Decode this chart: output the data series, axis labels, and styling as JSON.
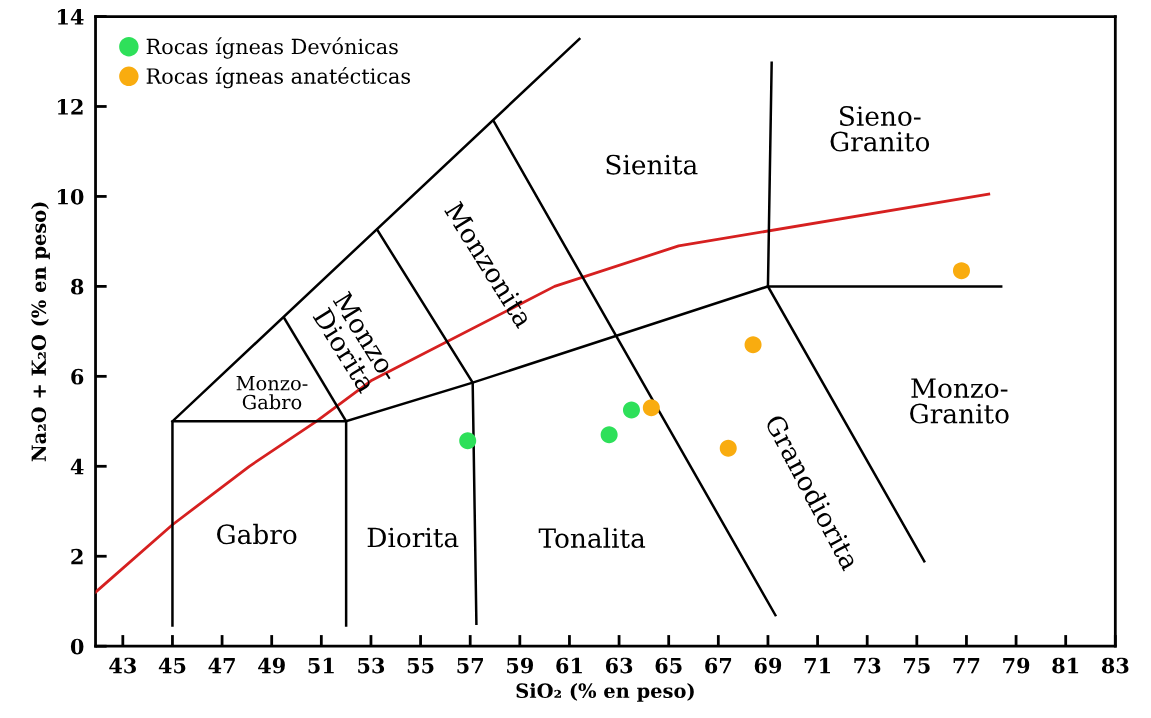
{
  "chart_data": {
    "type": "scatter",
    "xlabel": "SiO₂ (% en peso)",
    "ylabel": "Na₂O + K₂O (% en peso)",
    "xlim": [
      41.9,
      83
    ],
    "ylim": [
      0,
      14
    ],
    "xticks": [
      43,
      45,
      47,
      49,
      51,
      53,
      55,
      57,
      59,
      61,
      63,
      65,
      67,
      69,
      71,
      73,
      75,
      77,
      79,
      81,
      83
    ],
    "yticks": [
      0,
      2,
      4,
      6,
      8,
      10,
      12,
      14
    ],
    "grid": false,
    "legend": "top left",
    "series": [
      {
        "name": "Rocas ígneas Devónicas",
        "color": "#2ee05a",
        "marker": "circle",
        "x": [
          56.9,
          62.6,
          63.5
        ],
        "values": [
          4.57,
          4.7,
          5.25
        ]
      },
      {
        "name": "Rocas ígneas anatécticas",
        "color": "#f9ac0f",
        "marker": "circle",
        "x": [
          64.3,
          67.4,
          68.4,
          76.8
        ],
        "values": [
          5.3,
          4.4,
          6.7,
          8.35
        ]
      },
      {
        "type": "line",
        "color": "#d62020",
        "x": [
          41.9,
          45,
          48.1,
          50.8,
          53,
          60.4,
          65.4,
          77.9
        ],
        "values": [
          1.2,
          2.7,
          4.0,
          5.0,
          5.9,
          8.0,
          8.9,
          10.05
        ]
      },
      {
        "type": "line",
        "color": "#000000",
        "x": [
          45,
          45,
          52,
          52
        ],
        "values": [
          0.46,
          5,
          5,
          0.46
        ]
      },
      {
        "type": "line",
        "color": "#000000",
        "x": [
          45,
          61.4
        ],
        "values": [
          5,
          13.5
        ]
      },
      {
        "type": "line",
        "color": "#000000",
        "x": [
          49.5,
          52
        ],
        "values": [
          7.3,
          5
        ]
      },
      {
        "type": "line",
        "color": "#000000",
        "x": [
          53.25,
          57.1,
          57.25
        ],
        "values": [
          9.26,
          5.86,
          0.5
        ]
      },
      {
        "type": "line",
        "color": "#000000",
        "x": [
          57.95,
          69.3
        ],
        "values": [
          11.67,
          0.69
        ]
      },
      {
        "type": "line",
        "color": "#000000",
        "x": [
          52,
          57.1,
          69.0
        ],
        "values": [
          5,
          5.86,
          8.0
        ]
      },
      {
        "type": "line",
        "color": "#000000",
        "x": [
          69.15,
          69.0,
          78.4
        ],
        "values": [
          12.97,
          8.0,
          8.0
        ]
      },
      {
        "type": "line",
        "color": "#000000",
        "x": [
          69.0,
          75.3
        ],
        "values": [
          8.0,
          1.89
        ]
      }
    ],
    "annotations": [
      "Gabro",
      "Diorita",
      "Tonalita",
      "Monzo-\nGabro",
      "Monzo-\nDiorita",
      "Monzonita",
      "Sienita",
      "Sieno-\nGranito",
      "Granodiorita",
      "Monzo-\nGranito"
    ]
  }
}
